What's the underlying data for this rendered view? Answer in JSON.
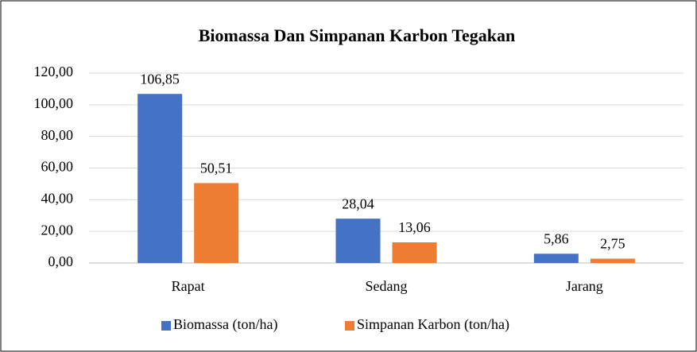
{
  "chart_data": {
    "type": "bar",
    "title": "Biomassa Dan Simpanan Karbon Tegakan",
    "categories": [
      "Rapat",
      "Sedang",
      "Jarang"
    ],
    "series": [
      {
        "name": "Biomassa (ton/ha)",
        "color": "#4472c4",
        "values": [
          106.85,
          28.04,
          5.86
        ],
        "value_labels": [
          "106,85",
          "28,04",
          "5,86"
        ]
      },
      {
        "name": "Simpanan Karbon (ton/ha)",
        "color": "#ed7d31",
        "values": [
          50.51,
          13.06,
          2.75
        ],
        "value_labels": [
          "50,51",
          "13,06",
          "2,75"
        ]
      }
    ],
    "ylim": [
      0,
      120
    ],
    "yticks": [
      {
        "value": 0,
        "label": "0,00"
      },
      {
        "value": 20,
        "label": "20,00"
      },
      {
        "value": 40,
        "label": "40,00"
      },
      {
        "value": 60,
        "label": "60,00"
      },
      {
        "value": 80,
        "label": "80,00"
      },
      {
        "value": 100,
        "label": "100,00"
      },
      {
        "value": 120,
        "label": "120,00"
      }
    ],
    "grid": true,
    "legend": "bottom"
  }
}
